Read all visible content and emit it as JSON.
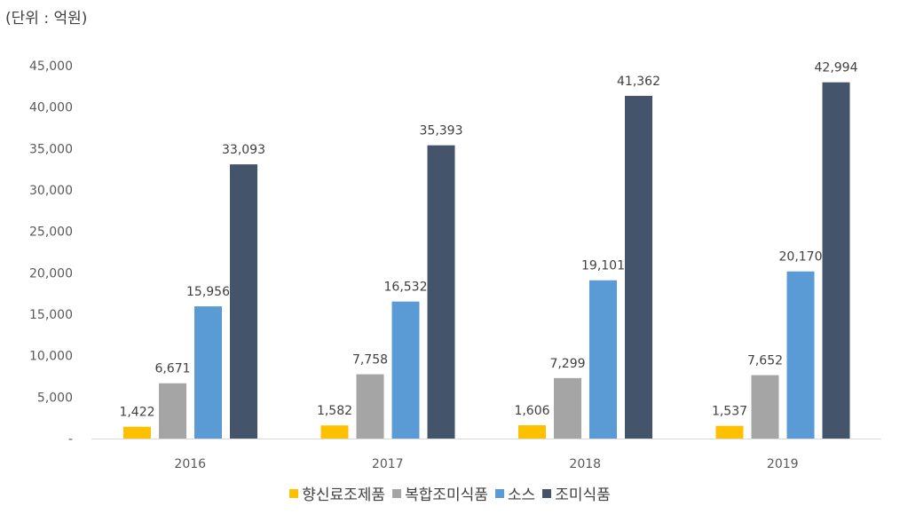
{
  "chart_data": {
    "type": "bar",
    "unit_label": "(단위 : 억원)",
    "categories": [
      "2016",
      "2017",
      "2018",
      "2019"
    ],
    "series": [
      {
        "name": "향신료조제품",
        "color": "#FFC000",
        "values": [
          1422,
          1582,
          1606,
          1537
        ],
        "labels": [
          "1,422",
          "1,582",
          "1,606",
          "1,537"
        ]
      },
      {
        "name": "복합조미식품",
        "color": "#A5A5A5",
        "values": [
          6671,
          7758,
          7299,
          7652
        ],
        "labels": [
          "6,671",
          "7,758",
          "7,299",
          "7,652"
        ]
      },
      {
        "name": "소스",
        "color": "#5B9BD5",
        "values": [
          15956,
          16532,
          19101,
          20170
        ],
        "labels": [
          "15,956",
          "16,532",
          "19,101",
          "20,170"
        ]
      },
      {
        "name": "조미식품",
        "color": "#44546A",
        "values": [
          33093,
          35393,
          41362,
          42994
        ],
        "labels": [
          "33,093",
          "35,393",
          "41,362",
          "42,994"
        ]
      }
    ],
    "ylim": [
      0,
      45000
    ],
    "y_ticks": [
      "-",
      "5,000",
      "10,000",
      "15,000",
      "20,000",
      "25,000",
      "30,000",
      "35,000",
      "40,000",
      "45,000"
    ],
    "grid": false,
    "legend_position": "bottom"
  }
}
